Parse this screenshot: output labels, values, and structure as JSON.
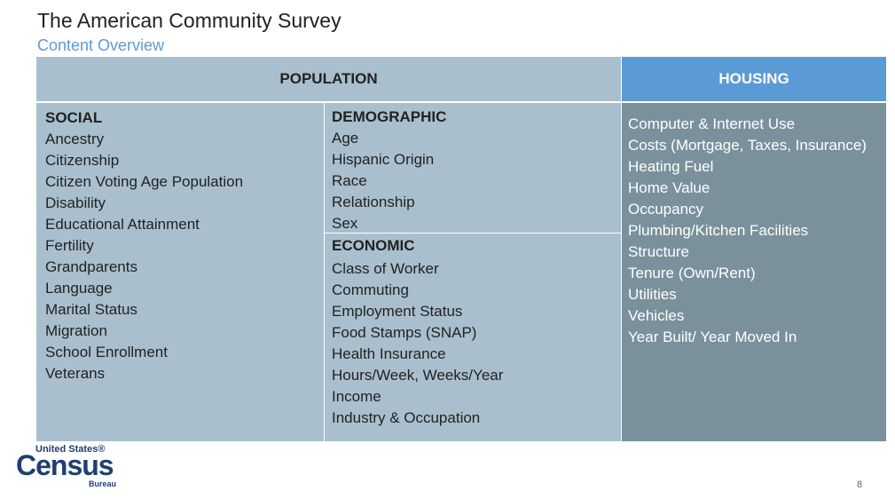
{
  "header": {
    "title": "The American Community Survey",
    "subtitle": "Content Overview"
  },
  "table": {
    "population_header": "POPULATION",
    "housing_header": "HOUSING",
    "social": {
      "heading": "SOCIAL",
      "items": [
        "Ancestry",
        "Citizenship",
        "Citizen Voting Age Population",
        "Disability",
        "Educational Attainment",
        "Fertility",
        "Grandparents",
        "Language",
        "Marital Status",
        "Migration",
        "School Enrollment",
        "Veterans"
      ]
    },
    "demographic": {
      "heading": "DEMOGRAPHIC",
      "items": [
        "Age",
        "Hispanic Origin",
        "Race",
        "Relationship",
        "Sex"
      ]
    },
    "economic": {
      "heading": "ECONOMIC",
      "items": [
        "Class of Worker",
        "Commuting",
        "Employment Status",
        "Food Stamps (SNAP)",
        "Health Insurance",
        "Hours/Week, Weeks/Year",
        "Income",
        "Industry & Occupation"
      ]
    },
    "housing": {
      "items": [
        "Computer & Internet Use",
        "Costs (Mortgage, Taxes, Insurance)",
        "Heating Fuel",
        "Home Value",
        "Occupancy",
        "Plumbing/Kitchen Facilities",
        "Structure",
        "Tenure (Own/Rent)",
        "Utilities",
        "Vehicles",
        "Year Built/ Year Moved In"
      ]
    }
  },
  "logo": {
    "line1": "United States®",
    "line2": "Census",
    "line3": "Bureau"
  },
  "footer": {
    "page_number": "8"
  }
}
